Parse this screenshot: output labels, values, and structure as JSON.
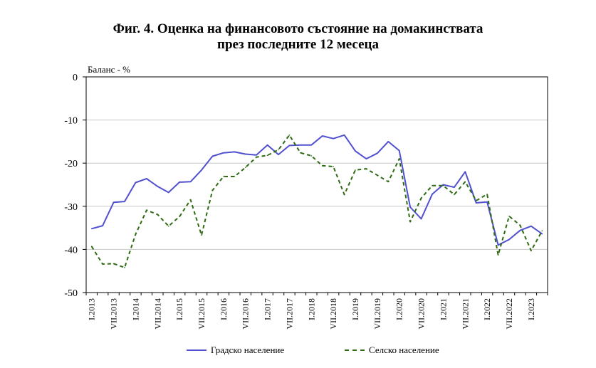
{
  "title_line1": "Фиг. 4. Оценка на финансовото състояние на домакинствата",
  "title_line2": "през последните 12 месеца",
  "colors": {
    "city": "#5050d0",
    "village": "#2e6b12",
    "grid": "#c8c8c8",
    "axis": "#000000"
  },
  "chart_data": {
    "type": "line",
    "title": "Фиг. 4. Оценка на финансовото състояние на домакинствата през последните 12 месеца",
    "ylabel": "Баланс - %",
    "xlabel": "",
    "ylim": [
      -50,
      0
    ],
    "yticks": [
      0,
      -10,
      -20,
      -30,
      -40,
      -50
    ],
    "grid": true,
    "legend_position": "bottom",
    "xtick_labels": [
      "I.2013",
      "VII.2013",
      "I.2014",
      "VII.2014",
      "I.2015",
      "VII.2015",
      "I.2016",
      "VII.2016",
      "I.2017",
      "VII.2017",
      "I.2018",
      "VII.2018",
      "I.2019",
      "VII.2019",
      "I.2020",
      "VII.2020",
      "I.2021",
      "VII.2021",
      "I.2022",
      "VII.2022",
      "I.2023"
    ],
    "x": [
      "I.2013",
      "IV.2013",
      "VII.2013",
      "X.2013",
      "I.2014",
      "IV.2014",
      "VII.2014",
      "X.2014",
      "I.2015",
      "IV.2015",
      "VII.2015",
      "X.2015",
      "I.2016",
      "IV.2016",
      "VII.2016",
      "X.2016",
      "I.2017",
      "IV.2017",
      "VII.2017",
      "X.2017",
      "I.2018",
      "IV.2018",
      "VII.2018",
      "X.2018",
      "I.2019",
      "IV.2019",
      "VII.2019",
      "X.2019",
      "I.2020",
      "IV.2020",
      "VII.2020",
      "X.2020",
      "I.2021",
      "IV.2021",
      "VII.2021",
      "X.2021",
      "I.2022",
      "IV.2022",
      "VII.2022",
      "X.2022",
      "I.2023",
      "IV.2023"
    ],
    "series": [
      {
        "name": "Градско население",
        "style": "solid",
        "values": [
          -35.2,
          -34.5,
          -29.1,
          -28.9,
          -24.5,
          -23.6,
          -25.4,
          -26.8,
          -24.4,
          -24.3,
          -21.6,
          -18.4,
          -17.6,
          -17.4,
          -17.9,
          -18.1,
          -15.8,
          -18.0,
          -15.9,
          -15.8,
          -15.8,
          -13.7,
          -14.3,
          -13.5,
          -17.2,
          -19.0,
          -17.7,
          -15.0,
          -17.1,
          -30.2,
          -32.9,
          -27.2,
          -25.0,
          -25.6,
          -22.0,
          -29.2,
          -29.0,
          -39.0,
          -37.7,
          -35.6,
          -34.6,
          -36.4
        ]
      },
      {
        "name": "Селско население",
        "style": "dashed",
        "values": [
          -39.3,
          -43.4,
          -43.3,
          -44.2,
          -36.5,
          -30.9,
          -31.9,
          -34.6,
          -32.4,
          -28.5,
          -36.7,
          -26.3,
          -23.1,
          -23.1,
          -21.0,
          -18.6,
          -18.2,
          -16.9,
          -13.5,
          -17.6,
          -18.3,
          -20.6,
          -20.8,
          -27.3,
          -21.6,
          -21.3,
          -22.8,
          -24.3,
          -19.0,
          -33.6,
          -28.1,
          -25.2,
          -25.2,
          -27.3,
          -24.3,
          -28.7,
          -27.2,
          -41.3,
          -32.3,
          -34.4,
          -40.3,
          -35.7
        ]
      }
    ]
  }
}
